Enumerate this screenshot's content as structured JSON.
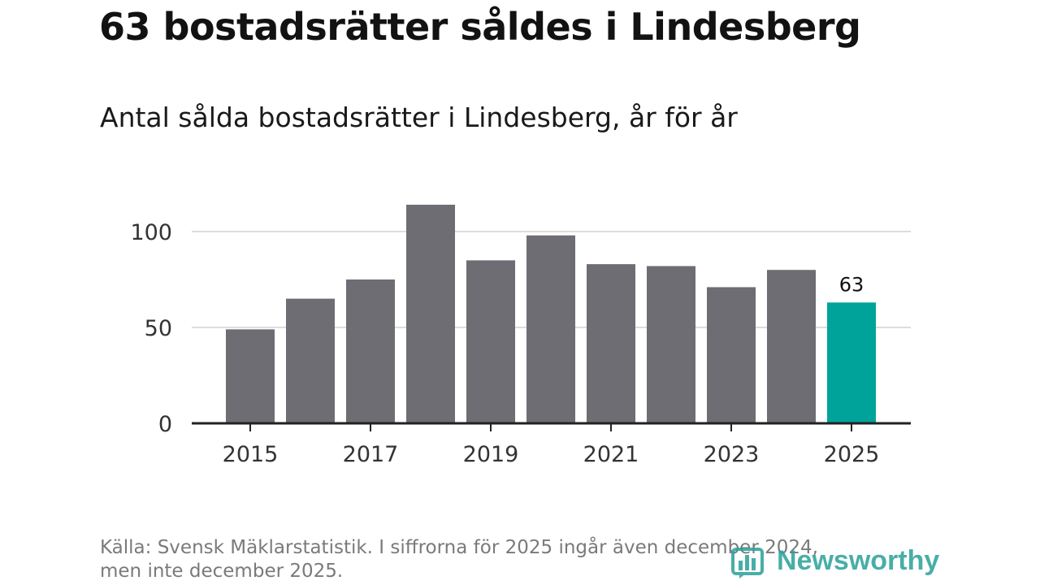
{
  "header": {
    "title": "63 bostadsrätter såldes i Lindesberg",
    "subtitle": "Antal sålda bostadsrätter i Lindesberg, år för år"
  },
  "footer": {
    "line1": "Källa: Svensk Mäklarstatistik. I siffrorna för 2025 ingår även december 2024,",
    "line2": "men inte december 2025."
  },
  "brand": {
    "name": "Newsworthy",
    "icon": "bar-chart-logo-icon"
  },
  "colors": {
    "bar": "#6e6d73",
    "highlight": "#00a39a",
    "grid": "#dddddd",
    "axis": "#222222"
  },
  "chart_data": {
    "type": "bar",
    "title": "Antal sålda bostadsrätter i Lindesberg, år för år",
    "xlabel": "",
    "ylabel": "",
    "categories": [
      "2015",
      "2016",
      "2017",
      "2018",
      "2019",
      "2020",
      "2021",
      "2022",
      "2023",
      "2024",
      "2025"
    ],
    "values": [
      49,
      65,
      75,
      114,
      85,
      98,
      83,
      82,
      71,
      80,
      63
    ],
    "ylim": [
      0,
      120
    ],
    "yticks": [
      0,
      50,
      100
    ],
    "xtick_labels": [
      "2015",
      "2017",
      "2019",
      "2021",
      "2023",
      "2025"
    ],
    "highlight_index": 10,
    "data_labels": [
      {
        "index": 10,
        "text": "63"
      }
    ],
    "grid": true
  }
}
